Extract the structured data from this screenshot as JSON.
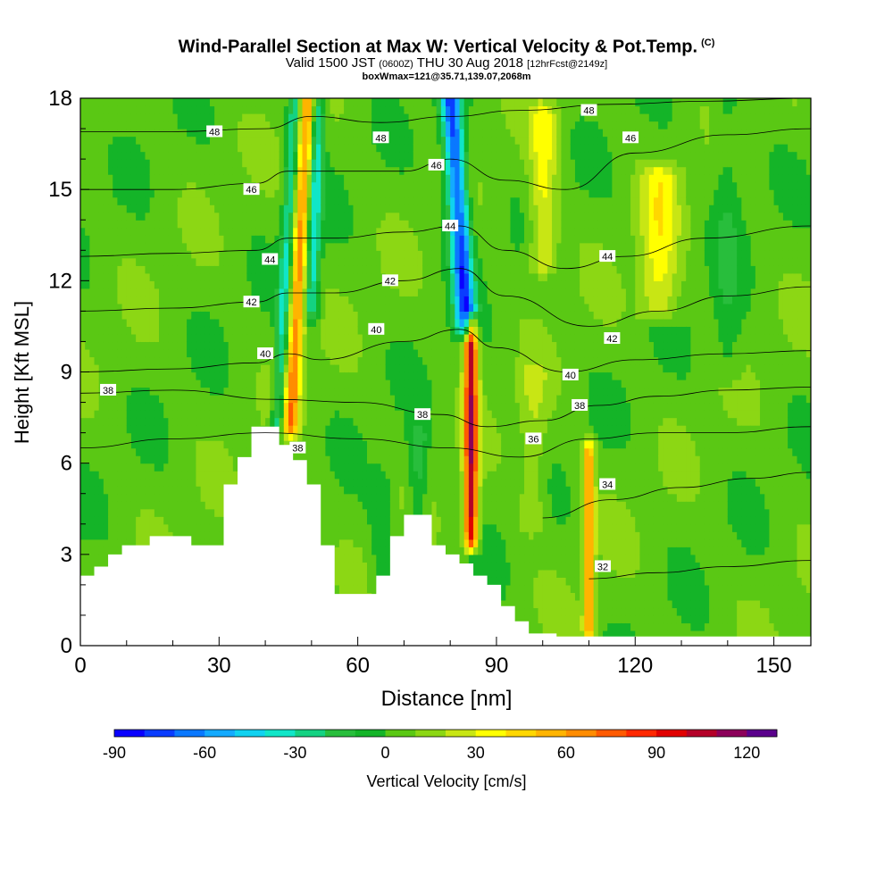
{
  "header": {
    "title": "Wind-Parallel Section at Max W: Vertical Velocity & Pot.Temp.",
    "title_mark": "(C)",
    "valid_prefix": "Valid 1500 JST",
    "valid_utc": "(0600Z)",
    "valid_date": "THU 30 Aug 2018",
    "forecast_info": "[12hrFcst@2149z]",
    "box_info": "boxWmax=121@35.71,139.07,2068m"
  },
  "chart_data": {
    "type": "heatmap",
    "xlabel": "Distance [nm]",
    "ylabel": "Height [Kft MSL]",
    "xlim": [
      0,
      158
    ],
    "ylim": [
      0,
      18
    ],
    "x_ticks": [
      0,
      30,
      60,
      90,
      120,
      150
    ],
    "x_tick_labels": [
      "0",
      "30",
      "60",
      "90",
      "120",
      "150"
    ],
    "y_ticks": [
      0,
      3,
      6,
      9,
      12,
      15,
      18
    ],
    "y_tick_labels": [
      "0",
      "3",
      "6",
      "9",
      "12",
      "15",
      "18"
    ],
    "colorbar": {
      "label": "Vertical Velocity [cm/s]",
      "min": -90,
      "max": 130,
      "step": 10,
      "tick_values": [
        -90,
        -60,
        -30,
        0,
        30,
        60,
        90,
        120
      ],
      "tick_labels": [
        "-90",
        "-60",
        "-30",
        "0",
        "30",
        "60",
        "90",
        "120"
      ],
      "colors": [
        "#0a00ff",
        "#0a3cff",
        "#0a78ff",
        "#14aaff",
        "#10d2f0",
        "#10e6c8",
        "#14d282",
        "#28be3c",
        "#14b428",
        "#5ac814",
        "#8cd714",
        "#c8e614",
        "#ffff00",
        "#ffd700",
        "#ffb400",
        "#ff8c00",
        "#ff5a00",
        "#ff2800",
        "#e10000",
        "#b40028",
        "#8c005a",
        "#5a008c"
      ]
    },
    "background_value": 5,
    "velocity_features": [
      {
        "x": 45.5,
        "y_bottom": 7.2,
        "y_top": 18,
        "lean": 0.35,
        "width": 1.6,
        "value": 60
      },
      {
        "x": 42.5,
        "y_bottom": 7.0,
        "y_top": 18,
        "lean": 0.35,
        "width": 1.3,
        "value": -35
      },
      {
        "x": 50.0,
        "y_bottom": 11.0,
        "y_top": 18,
        "lean": 0.2,
        "width": 1.5,
        "value": -40
      },
      {
        "x": 84.5,
        "y_bottom": 3.5,
        "y_top": 10.5,
        "lean": 0.0,
        "width": 1.4,
        "value": 100
      },
      {
        "x": 83.5,
        "y_bottom": 10.5,
        "y_top": 18,
        "lean": -0.45,
        "width": 2.2,
        "value": -80
      },
      {
        "x": 110.0,
        "y_bottom": 0.5,
        "y_top": 6.5,
        "lean": 0.0,
        "width": 1.2,
        "value": 55
      },
      {
        "x": 125.0,
        "y_bottom": 11.0,
        "y_top": 15.5,
        "lean": 0.1,
        "width": 4.0,
        "value": 28
      },
      {
        "x": 100.0,
        "y_bottom": 12.5,
        "y_top": 17.5,
        "lean": 0.05,
        "width": 3.0,
        "value": 28
      },
      {
        "x": 73.0,
        "y_bottom": 4.3,
        "y_top": 7.0,
        "lean": 0.0,
        "width": 2.0,
        "value": -22
      },
      {
        "x": 65.0,
        "y_bottom": 2.0,
        "y_top": 5.5,
        "lean": 0.0,
        "width": 2.5,
        "value": -12
      },
      {
        "x": 140.0,
        "y_bottom": 9.0,
        "y_top": 18,
        "lean": 0.0,
        "width": 3.0,
        "value": -12
      },
      {
        "x": 98.0,
        "y_bottom": 4.0,
        "y_top": 9.0,
        "lean": 0.0,
        "width": 3.0,
        "value": 15
      }
    ],
    "terrain": [
      {
        "x": 0,
        "height": 2.3
      },
      {
        "x": 3,
        "height": 2.6
      },
      {
        "x": 6,
        "height": 3.0
      },
      {
        "x": 9,
        "height": 3.3
      },
      {
        "x": 15,
        "height": 3.6
      },
      {
        "x": 24,
        "height": 3.3
      },
      {
        "x": 31,
        "height": 5.3
      },
      {
        "x": 34,
        "height": 6.2
      },
      {
        "x": 37,
        "height": 7.2
      },
      {
        "x": 43,
        "height": 6.6
      },
      {
        "x": 46,
        "height": 6.1
      },
      {
        "x": 49,
        "height": 5.3
      },
      {
        "x": 52,
        "height": 3.3
      },
      {
        "x": 55,
        "height": 1.7
      },
      {
        "x": 61,
        "height": 1.7
      },
      {
        "x": 64,
        "height": 2.3
      },
      {
        "x": 67,
        "height": 3.6
      },
      {
        "x": 70,
        "height": 4.3
      },
      {
        "x": 76,
        "height": 3.3
      },
      {
        "x": 79,
        "height": 3.0
      },
      {
        "x": 82,
        "height": 2.7
      },
      {
        "x": 85,
        "height": 2.3
      },
      {
        "x": 88,
        "height": 2.0
      },
      {
        "x": 91,
        "height": 1.3
      },
      {
        "x": 94,
        "height": 0.8
      },
      {
        "x": 97,
        "height": 0.4
      },
      {
        "x": 103,
        "height": 0.3
      },
      {
        "x": 158,
        "height": 0.3
      }
    ],
    "theta_contours": [
      {
        "level": 32,
        "x": [
          110,
          125,
          140,
          158
        ],
        "y": [
          2.2,
          2.4,
          2.6,
          2.8
        ]
      },
      {
        "level": 34,
        "x": [
          100,
          115,
          130,
          145,
          158
        ],
        "y": [
          4.2,
          4.8,
          5.2,
          5.5,
          5.7
        ]
      },
      {
        "level": 36,
        "x": [
          0,
          20,
          40,
          60,
          80,
          95,
          110,
          125,
          140,
          158
        ],
        "y": [
          6.5,
          6.8,
          7.0,
          6.8,
          6.5,
          6.2,
          6.8,
          7.0,
          7.0,
          7.2
        ]
      },
      {
        "level": 38,
        "x": [
          0,
          20,
          42,
          60,
          78,
          88,
          100,
          112,
          125,
          140,
          158
        ],
        "y": [
          8.3,
          8.4,
          8.1,
          8.0,
          7.6,
          7.2,
          7.4,
          7.9,
          8.2,
          8.4,
          8.5
        ]
      },
      {
        "level": 40,
        "x": [
          0,
          20,
          38,
          45,
          52,
          70,
          82,
          90,
          105,
          120,
          140,
          158
        ],
        "y": [
          9.0,
          9.1,
          9.3,
          9.6,
          9.4,
          10.0,
          10.4,
          9.8,
          9.0,
          9.4,
          9.6,
          9.7
        ]
      },
      {
        "level": 42,
        "x": [
          0,
          20,
          38,
          45,
          55,
          70,
          82,
          92,
          110,
          125,
          140,
          158
        ],
        "y": [
          11.0,
          11.1,
          11.3,
          11.6,
          11.6,
          12.0,
          12.4,
          11.5,
          10.5,
          11.0,
          11.5,
          11.8
        ]
      },
      {
        "level": 44,
        "x": [
          0,
          20,
          38,
          45,
          55,
          70,
          82,
          92,
          105,
          118,
          135,
          158
        ],
        "y": [
          12.8,
          12.9,
          13.0,
          13.4,
          13.4,
          13.6,
          13.8,
          13.0,
          12.4,
          12.8,
          13.4,
          13.8
        ]
      },
      {
        "level": 46,
        "x": [
          0,
          20,
          38,
          45,
          55,
          70,
          80,
          92,
          105,
          120,
          140,
          158
        ],
        "y": [
          15.0,
          15.0,
          15.2,
          15.6,
          15.6,
          15.6,
          16.0,
          15.3,
          15.0,
          16.2,
          16.8,
          17.0
        ]
      },
      {
        "level": 48,
        "x": [
          0,
          20,
          40,
          50,
          65,
          80,
          95,
          115,
          135,
          158
        ],
        "y": [
          16.9,
          16.9,
          17.0,
          17.4,
          17.2,
          17.4,
          17.6,
          17.8,
          17.9,
          18.0
        ]
      }
    ],
    "contour_labels": [
      {
        "text": "48",
        "x": 29,
        "y": 16.9
      },
      {
        "text": "48",
        "x": 65,
        "y": 16.7
      },
      {
        "text": "48",
        "x": 110,
        "y": 17.6
      },
      {
        "text": "46",
        "x": 37,
        "y": 15.0
      },
      {
        "text": "46",
        "x": 77,
        "y": 15.8
      },
      {
        "text": "46",
        "x": 119,
        "y": 16.7
      },
      {
        "text": "44",
        "x": 41,
        "y": 12.7
      },
      {
        "text": "44",
        "x": 80,
        "y": 13.8
      },
      {
        "text": "44",
        "x": 114,
        "y": 12.8
      },
      {
        "text": "42",
        "x": 37,
        "y": 11.3
      },
      {
        "text": "42",
        "x": 67,
        "y": 12.0
      },
      {
        "text": "42",
        "x": 115,
        "y": 10.1
      },
      {
        "text": "40",
        "x": 40,
        "y": 9.6
      },
      {
        "text": "40",
        "x": 64,
        "y": 10.4
      },
      {
        "text": "40",
        "x": 106,
        "y": 8.9
      },
      {
        "text": "38",
        "x": 6,
        "y": 8.4
      },
      {
        "text": "38",
        "x": 47,
        "y": 6.5
      },
      {
        "text": "38",
        "x": 74,
        "y": 7.6
      },
      {
        "text": "38",
        "x": 108,
        "y": 7.9
      },
      {
        "text": "36",
        "x": 98,
        "y": 6.8
      },
      {
        "text": "34",
        "x": 114,
        "y": 5.3
      },
      {
        "text": "32",
        "x": 113,
        "y": 2.6
      }
    ]
  }
}
